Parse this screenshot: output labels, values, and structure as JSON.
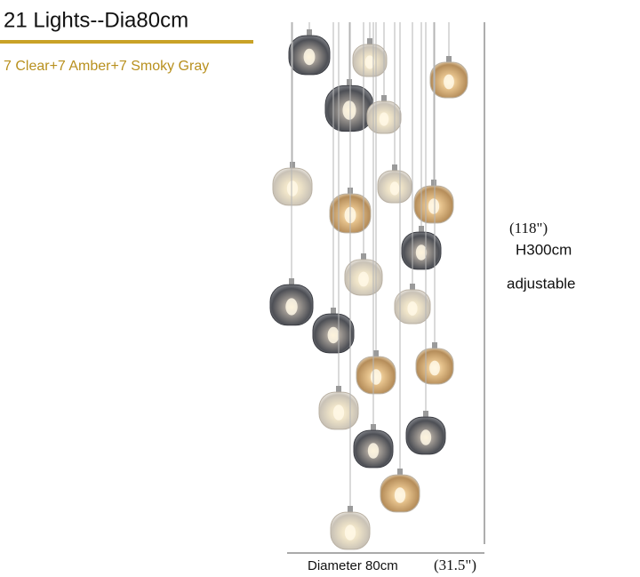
{
  "header": {
    "title": "21 Lights--Dia80cm",
    "subtitle": "7 Clear+7 Amber+7 Smoky Gray"
  },
  "height": {
    "inches": "(118\")",
    "cm": "H300cm",
    "note": "adjustable"
  },
  "diameter": {
    "cm": "Diameter 80cm",
    "inches": "(31.5\")"
  }
}
